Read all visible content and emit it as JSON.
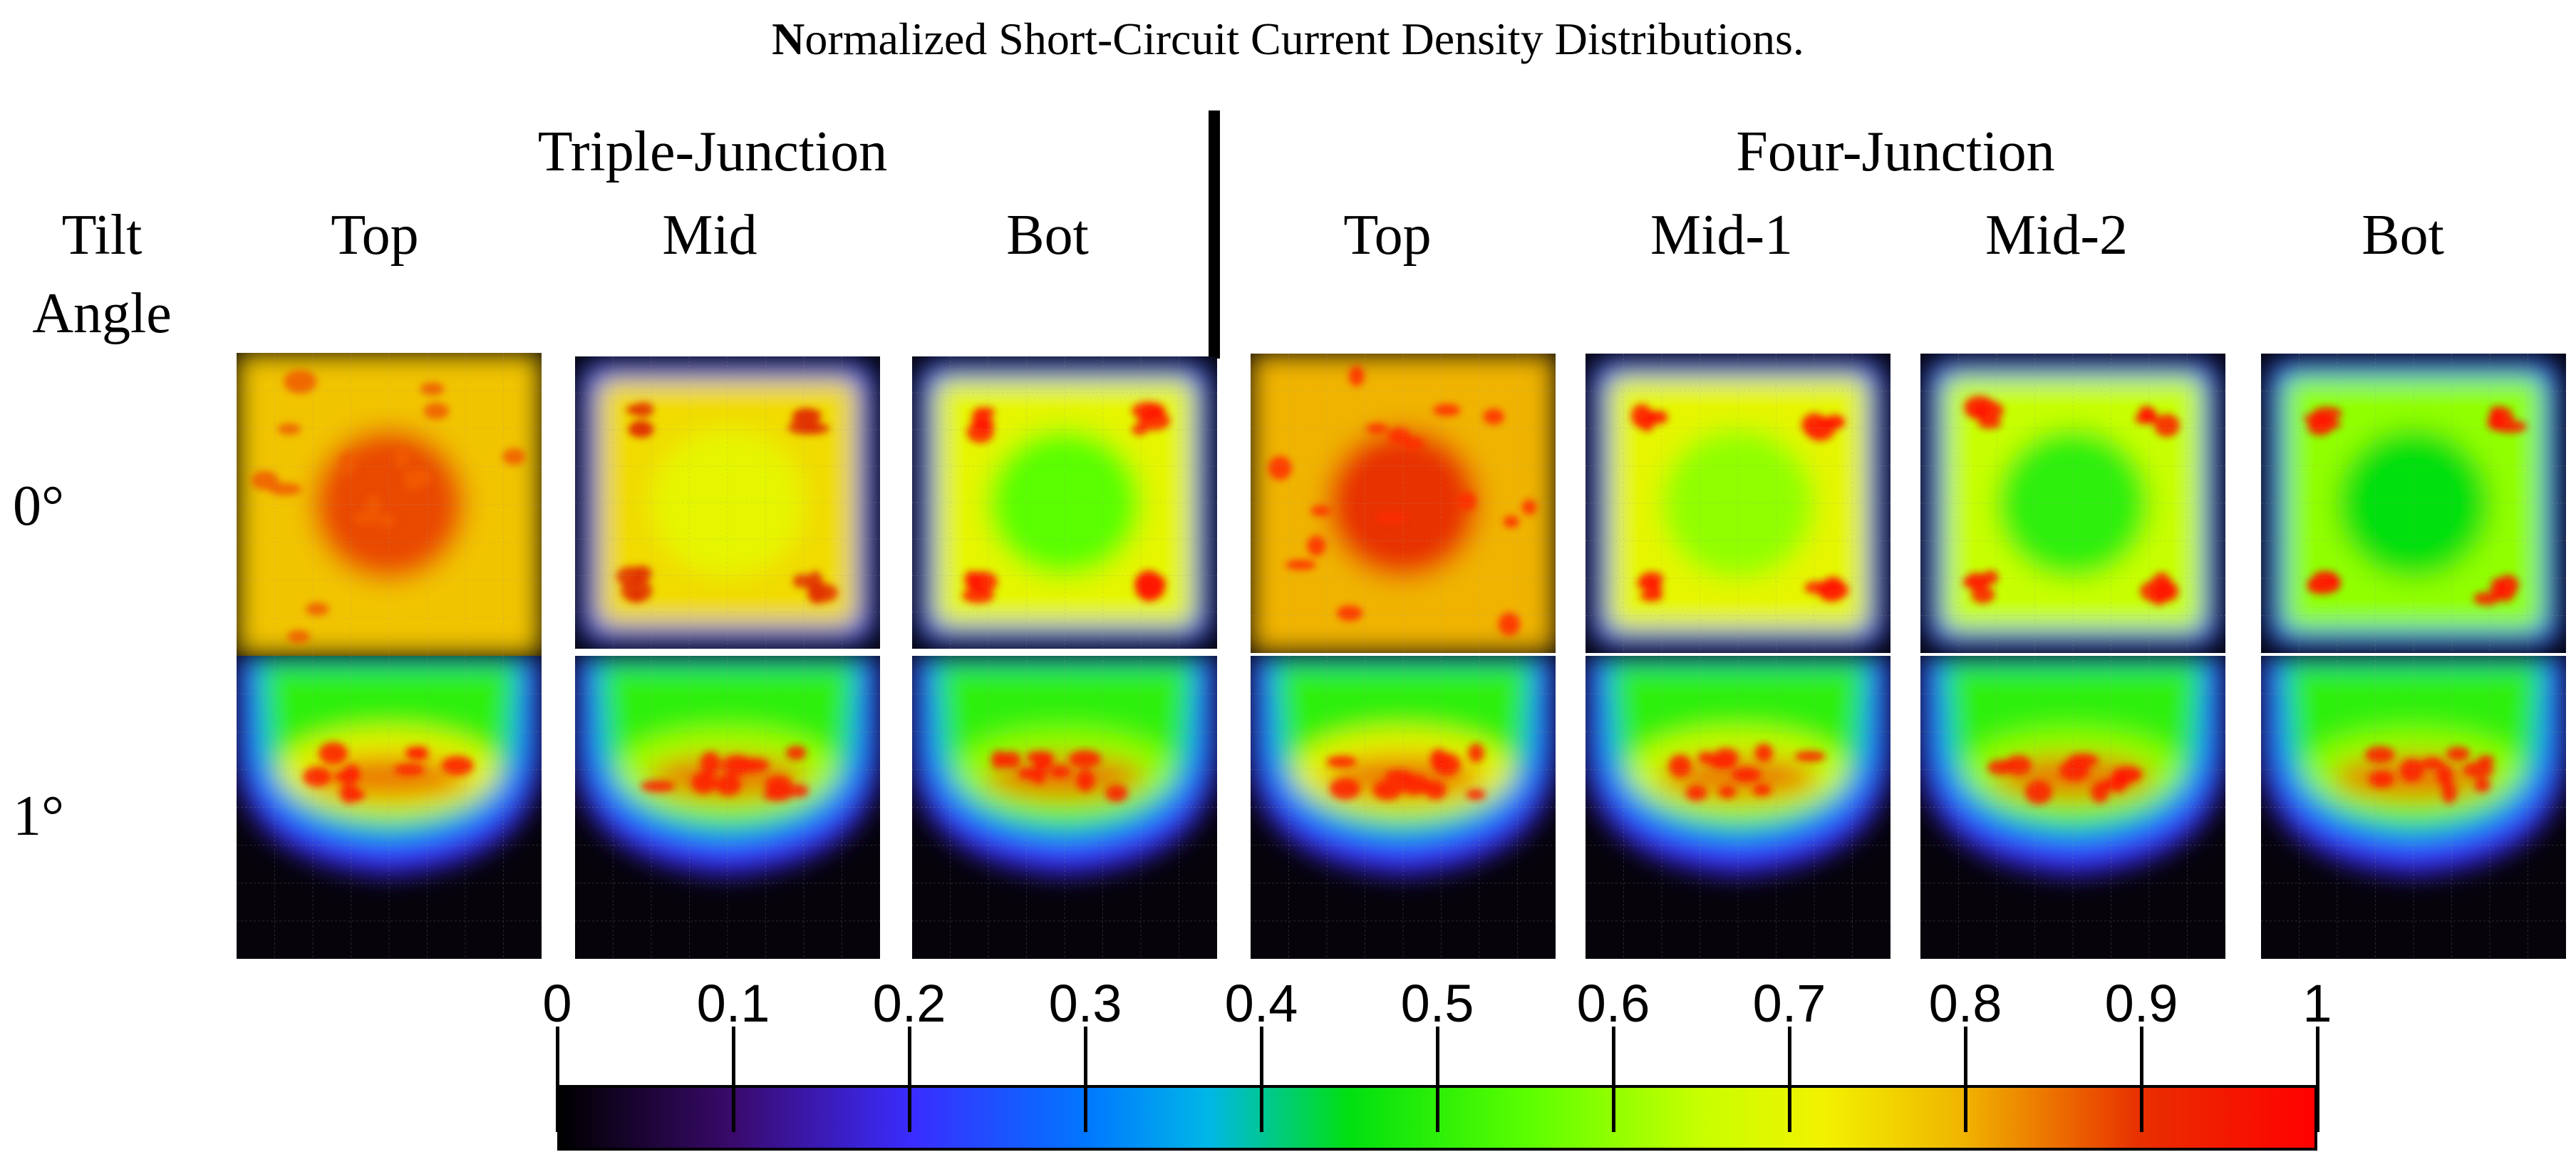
{
  "title": "Normalized Short-Circuit Current Density Distributions.",
  "groups": {
    "triple": "Triple-Junction",
    "four": "Four-Junction"
  },
  "tilt_header": {
    "line1": "Tilt",
    "line2": "Angle"
  },
  "columns": {
    "t_top": "Top",
    "t_mid": "Mid",
    "t_bot": "Bot",
    "f_top": "Top",
    "f_mid1": "Mid-1",
    "f_mid2": "Mid-2",
    "f_bot": "Bot"
  },
  "rows": {
    "r0": "0°",
    "r1": "1°"
  },
  "colorbar": {
    "labels": [
      "0",
      "0.1",
      "0.2",
      "0.3",
      "0.4",
      "0.5",
      "0.6",
      "0.7",
      "0.8",
      "0.9",
      "1"
    ],
    "stops": [
      {
        "value": 0.0,
        "color": "#000000"
      },
      {
        "value": 0.1,
        "color": "#3a0a6e"
      },
      {
        "value": 0.2,
        "color": "#3a2cff"
      },
      {
        "value": 0.3,
        "color": "#0077ff"
      },
      {
        "value": 0.37,
        "color": "#00b7e6"
      },
      {
        "value": 0.45,
        "color": "#00e010"
      },
      {
        "value": 0.55,
        "color": "#5aff00"
      },
      {
        "value": 0.65,
        "color": "#c8ff00"
      },
      {
        "value": 0.72,
        "color": "#f2f200"
      },
      {
        "value": 0.8,
        "color": "#f0b400"
      },
      {
        "value": 0.9,
        "color": "#e83000"
      },
      {
        "value": 1.0,
        "color": "#ff0000"
      }
    ]
  },
  "panels": [
    {
      "key": "tj-top-0",
      "uniform": true,
      "level": 0.78,
      "inner": 0.88,
      "red": "#f05a00"
    },
    {
      "key": "tj-mid-0",
      "uniform": false,
      "level": 0.75,
      "inner": 0.7,
      "red": "#e23000"
    },
    {
      "key": "tj-bot-0",
      "uniform": false,
      "level": 0.7,
      "inner": 0.55,
      "red": "#ff1a00"
    },
    {
      "key": "fj-top-0",
      "uniform": true,
      "level": 0.8,
      "inner": 0.9,
      "red": "#ff2a00"
    },
    {
      "key": "fj-mid1-0",
      "uniform": false,
      "level": 0.7,
      "inner": 0.6,
      "red": "#ff1a00"
    },
    {
      "key": "fj-mid2-0",
      "uniform": false,
      "level": 0.65,
      "inner": 0.5,
      "red": "#ff1a00"
    },
    {
      "key": "fj-bot-0",
      "uniform": false,
      "level": 0.6,
      "inner": 0.45,
      "red": "#ff1a00"
    },
    {
      "key": "tj-top-1",
      "shape": "half",
      "level": 0.7,
      "red": "#ff1a00"
    },
    {
      "key": "tj-mid-1",
      "shape": "half",
      "level": 0.62,
      "red": "#ff1a00"
    },
    {
      "key": "tj-bot-1",
      "shape": "half",
      "level": 0.6,
      "red": "#ff1a00"
    },
    {
      "key": "fj-top-1",
      "shape": "half",
      "level": 0.7,
      "red": "#ff1a00"
    },
    {
      "key": "fj-mid1-1",
      "shape": "half",
      "level": 0.65,
      "red": "#ff1a00"
    },
    {
      "key": "fj-mid2-1",
      "shape": "half",
      "level": 0.6,
      "red": "#ff1a00"
    },
    {
      "key": "fj-bot-1",
      "shape": "half",
      "level": 0.6,
      "red": "#ff1a00"
    }
  ]
}
